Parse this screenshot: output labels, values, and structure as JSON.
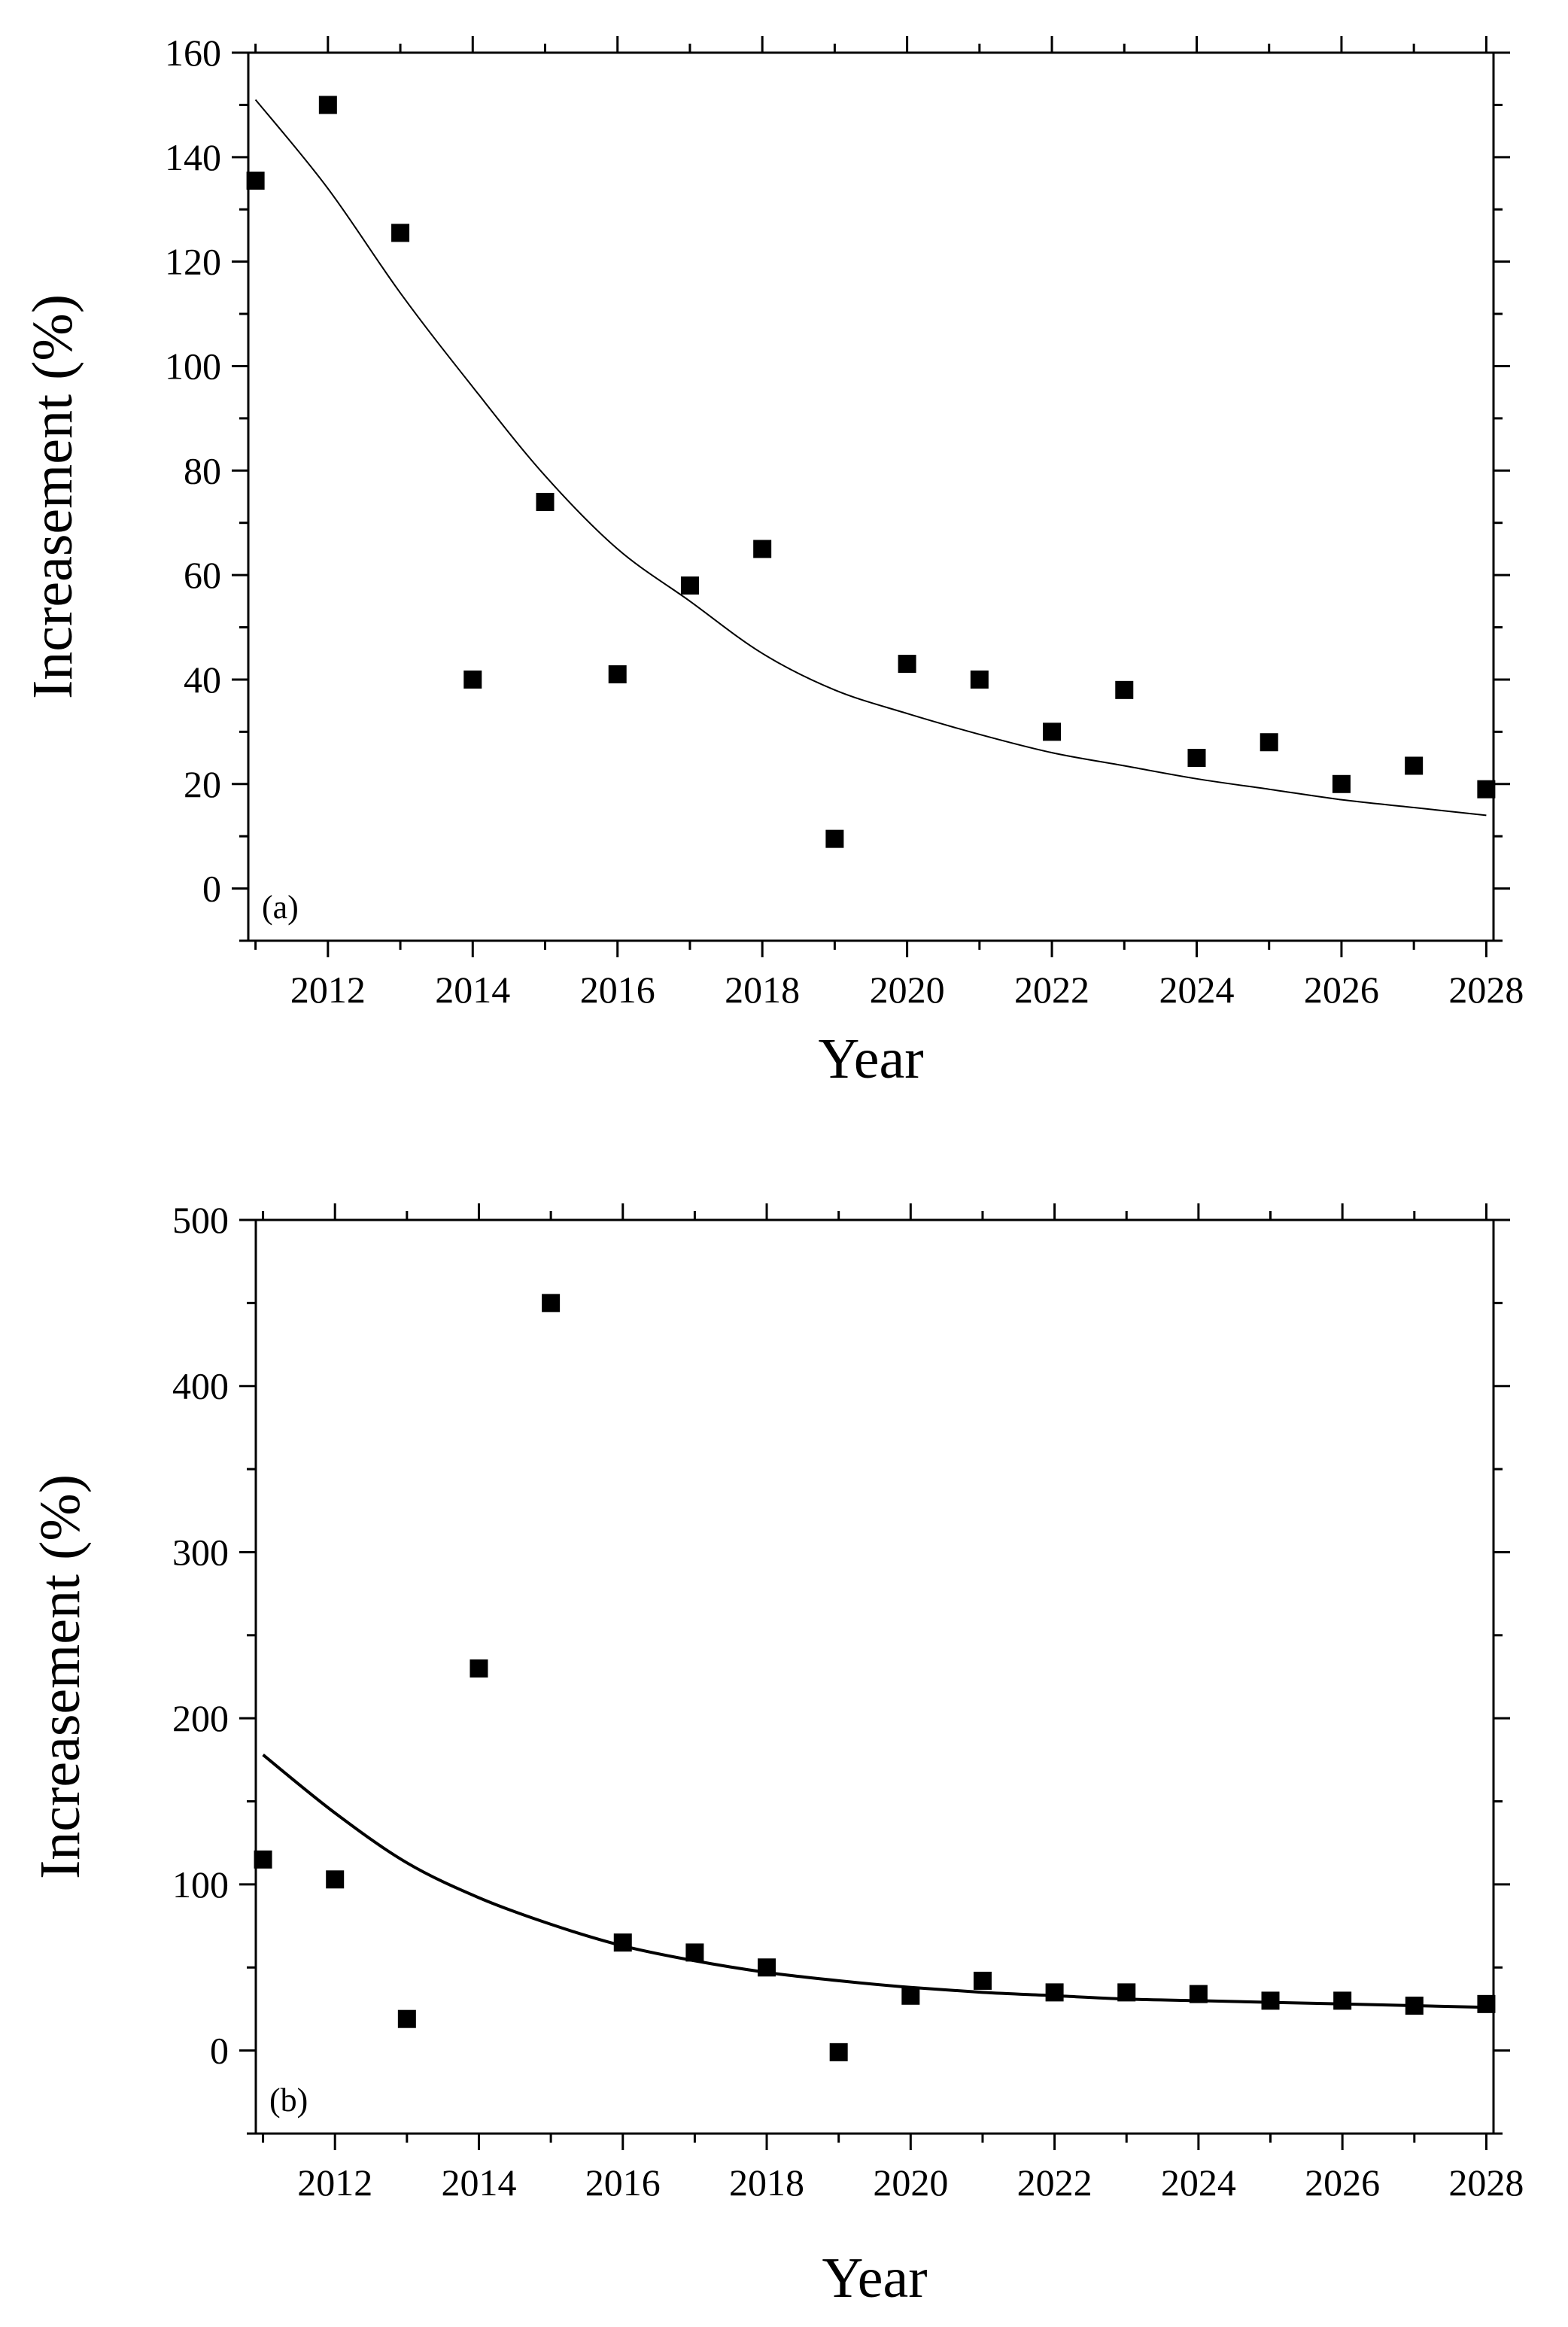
{
  "chart_data": [
    {
      "type": "scatter",
      "panel_label": "(a)",
      "xlabel": "Year",
      "ylabel": "Increasement (%)",
      "xlim": [
        2010.9,
        2028.1
      ],
      "ylim": [
        -10,
        160
      ],
      "x_ticks": [
        2012,
        2014,
        2016,
        2018,
        2020,
        2022,
        2024,
        2026,
        2028
      ],
      "y_ticks": [
        0,
        20,
        40,
        60,
        80,
        100,
        120,
        140,
        160
      ],
      "grid": false,
      "series": [
        {
          "kind": "points",
          "x": [
            2011,
            2012,
            2013,
            2014,
            2015,
            2016,
            2017,
            2018,
            2019,
            2020,
            2021,
            2022,
            2023,
            2024,
            2025,
            2026,
            2027,
            2028
          ],
          "y": [
            135.5,
            150,
            125.5,
            40,
            74,
            41,
            58,
            65,
            9.5,
            43,
            40,
            30,
            38,
            25,
            28,
            20,
            23.5,
            19
          ]
        },
        {
          "kind": "fit-line",
          "x": [
            2011,
            2012,
            2013,
            2014,
            2015,
            2016,
            2017,
            2018,
            2019,
            2020,
            2021,
            2022,
            2023,
            2024,
            2025,
            2026,
            2027,
            2028
          ],
          "y": [
            151,
            134,
            114,
            96,
            79,
            65,
            55,
            45,
            38,
            33.5,
            29.5,
            26,
            23.5,
            21,
            19,
            17,
            15.5,
            14
          ]
        }
      ]
    },
    {
      "type": "scatter",
      "panel_label": "(b)",
      "xlabel": "Year",
      "ylabel": "Increasement (%)",
      "xlim": [
        2010.9,
        2028.1
      ],
      "ylim": [
        -50,
        500
      ],
      "x_ticks": [
        2012,
        2014,
        2016,
        2018,
        2020,
        2022,
        2024,
        2026,
        2028
      ],
      "y_ticks": [
        0,
        100,
        200,
        300,
        400,
        500
      ],
      "grid": false,
      "series": [
        {
          "kind": "points",
          "x": [
            2011,
            2012,
            2013,
            2014,
            2015,
            2016,
            2017,
            2018,
            2019,
            2020,
            2021,
            2022,
            2023,
            2024,
            2025,
            2026,
            2027,
            2028
          ],
          "y": [
            115,
            103,
            19,
            230,
            450,
            65,
            59,
            50,
            -1,
            33,
            42,
            35,
            35,
            34,
            30,
            30,
            27,
            28
          ]
        },
        {
          "kind": "fit-line",
          "x": [
            2011,
            2012,
            2013,
            2014,
            2015,
            2016,
            2017,
            2018,
            2019,
            2020,
            2021,
            2022,
            2023,
            2024,
            2025,
            2026,
            2027,
            2028
          ],
          "y": [
            178,
            143,
            113,
            92,
            76,
            63,
            54,
            47,
            42,
            38,
            35,
            33,
            31,
            30,
            29,
            28,
            27,
            26
          ]
        }
      ]
    }
  ]
}
